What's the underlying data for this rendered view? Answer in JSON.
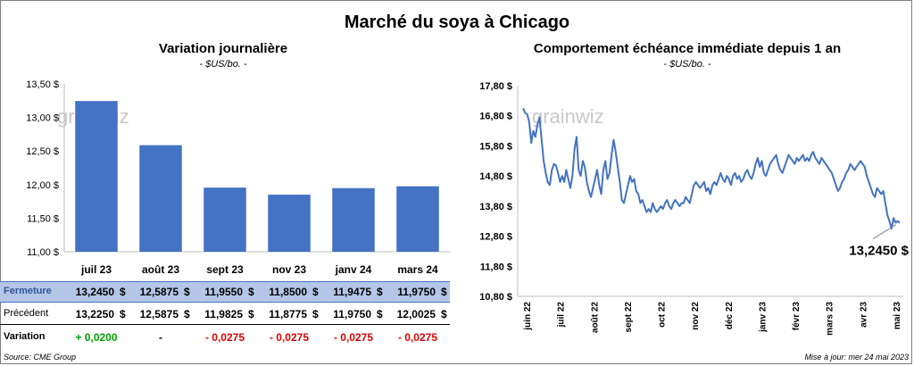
{
  "title": "Marché du soya à Chicago",
  "watermark": "grainwiz",
  "colors": {
    "bar": "#4472c4",
    "line": "#4472c4",
    "positive": "#00a000",
    "negative": "#e00000",
    "highlight_row": "#b4c6e7"
  },
  "left": {
    "title": "Variation journalière",
    "subtitle": "- $US/bo. -"
  },
  "right": {
    "title": "Comportement échéance immédiate depuis 1 an",
    "subtitle": "- $US/bo. -",
    "last_value_label": "13,2450 $"
  },
  "table": {
    "row_labels": {
      "fermeture": "Fermeture",
      "precedent": "Précédent",
      "variation": "Variation"
    },
    "currency": "$",
    "fermeture": [
      "13,2450",
      "12,5875",
      "11,9550",
      "11,8500",
      "11,9475",
      "11,9750"
    ],
    "precedent": [
      "13,2250",
      "12,5875",
      "11,9825",
      "11,8775",
      "11,9750",
      "12,0025"
    ],
    "variation": [
      "+ 0,0200",
      "-",
      "- 0,0275",
      "- 0,0275",
      "- 0,0275",
      "- 0,0275"
    ]
  },
  "footer": {
    "source": "Source: CME Group",
    "updated": "Mise à jour: mer 24 mai 2023"
  },
  "chart_data": [
    {
      "type": "bar",
      "title": "Variation journalière",
      "subtitle": "- $US/bo. -",
      "categories": [
        "juil 23",
        "août 23",
        "sept 23",
        "nov 23",
        "janv 24",
        "mars 24"
      ],
      "values": [
        13.245,
        12.5875,
        11.955,
        11.85,
        11.9475,
        11.975
      ],
      "ylim": [
        11.0,
        13.5
      ],
      "yticks": [
        11.0,
        11.5,
        12.0,
        12.5,
        13.0,
        13.5
      ],
      "ytick_labels": [
        "11,00 $",
        "11,50 $",
        "12,00 $",
        "12,50 $",
        "13,00 $",
        "13,50 $"
      ],
      "grid": false
    },
    {
      "type": "line",
      "title": "Comportement échéance immédiate depuis 1 an",
      "subtitle": "- $US/bo. -",
      "ylim": [
        10.8,
        17.8
      ],
      "yticks": [
        10.8,
        11.8,
        12.8,
        13.8,
        14.8,
        15.8,
        16.8,
        17.8
      ],
      "ytick_labels": [
        "10,80 $",
        "11,80 $",
        "12,80 $",
        "13,80 $",
        "14,80 $",
        "15,80 $",
        "16,80 $",
        "17,80 $"
      ],
      "xtick_labels": [
        "juin 22",
        "juil 22",
        "août 22",
        "sept 22",
        "oct 22",
        "nov 22",
        "déc 22",
        "janv 23",
        "févr 23",
        "mars 23",
        "avr 23",
        "mai 23"
      ],
      "annotation": "13,2450 $",
      "grid": false,
      "y": [
        17.05,
        16.9,
        16.85,
        16.6,
        15.9,
        16.3,
        16.1,
        16.5,
        16.75,
        16.0,
        15.3,
        14.9,
        14.6,
        14.5,
        15.0,
        15.2,
        15.15,
        14.9,
        14.6,
        14.8,
        14.6,
        15.0,
        14.7,
        14.4,
        14.8,
        15.7,
        16.1,
        15.0,
        14.8,
        15.3,
        15.1,
        14.6,
        14.3,
        14.1,
        14.4,
        14.7,
        15.0,
        14.5,
        14.2,
        15.0,
        15.3,
        14.7,
        14.9,
        15.5,
        16.0,
        15.6,
        15.1,
        14.6,
        14.0,
        13.9,
        14.2,
        14.5,
        14.8,
        14.6,
        14.7,
        14.3,
        14.2,
        13.9,
        14.0,
        13.8,
        13.6,
        13.7,
        13.6,
        13.9,
        13.7,
        13.6,
        13.7,
        13.8,
        13.7,
        13.9,
        14.0,
        13.8,
        13.7,
        13.9,
        14.0,
        13.9,
        13.8,
        13.9,
        13.9,
        14.1,
        14.0,
        13.9,
        14.2,
        14.5,
        14.6,
        14.5,
        14.4,
        14.5,
        14.6,
        14.3,
        14.4,
        14.2,
        14.5,
        14.6,
        14.5,
        14.7,
        14.9,
        14.7,
        14.6,
        14.8,
        14.7,
        14.5,
        14.8,
        14.9,
        14.7,
        14.8,
        14.6,
        14.7,
        14.9,
        15.0,
        14.8,
        14.7,
        14.9,
        15.2,
        15.4,
        15.1,
        15.3,
        14.9,
        14.8,
        15.0,
        15.2,
        15.3,
        15.4,
        15.5,
        15.2,
        15.0,
        14.9,
        15.1,
        15.3,
        15.5,
        15.4,
        15.3,
        15.2,
        15.4,
        15.3,
        15.4,
        15.5,
        15.3,
        15.4,
        15.3,
        15.5,
        15.6,
        15.4,
        15.3,
        15.2,
        15.4,
        15.3,
        15.2,
        15.1,
        15.0,
        14.9,
        14.7,
        14.5,
        14.3,
        14.4,
        14.6,
        14.7,
        14.9,
        15.0,
        15.2,
        15.1,
        15.0,
        15.1,
        15.2,
        15.3,
        15.2,
        15.1,
        14.8,
        14.6,
        14.4,
        14.2,
        14.1,
        14.4,
        14.3,
        14.2,
        14.3,
        13.9,
        13.5,
        13.3,
        13.05,
        13.4,
        13.25,
        13.3,
        13.245
      ]
    }
  ]
}
